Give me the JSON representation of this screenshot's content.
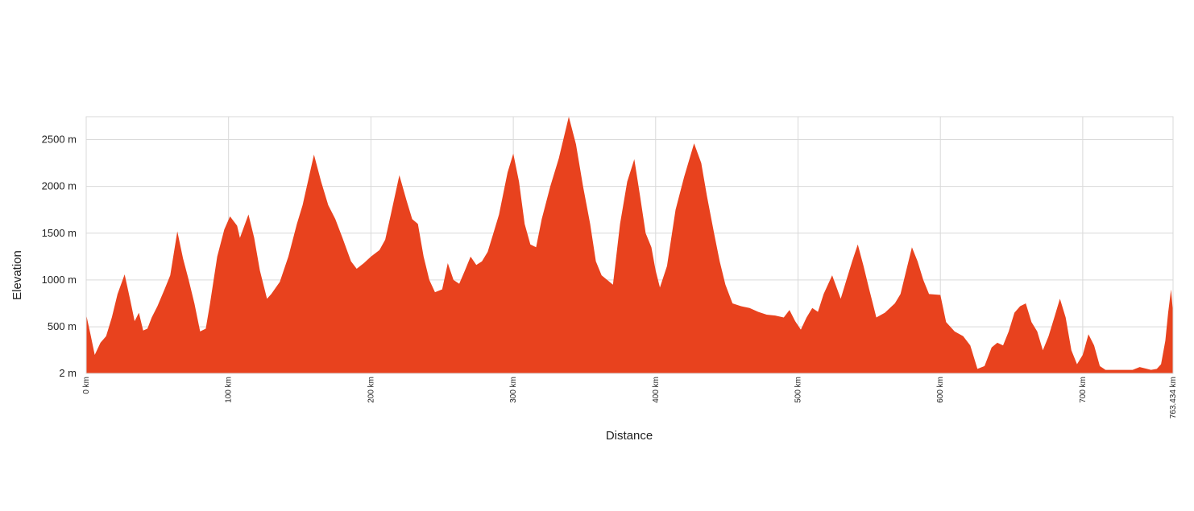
{
  "chart_data": {
    "type": "area",
    "title": "",
    "xlabel": "Distance",
    "ylabel": "Elevation",
    "xlim": [
      0,
      763.434
    ],
    "ylim": [
      2,
      2745
    ],
    "grid": true,
    "color": "#e8421e",
    "x_ticks": [
      {
        "value": 0,
        "label": "0 km"
      },
      {
        "value": 100,
        "label": "100 km"
      },
      {
        "value": 200,
        "label": "200 km"
      },
      {
        "value": 300,
        "label": "300 km"
      },
      {
        "value": 400,
        "label": "400 km"
      },
      {
        "value": 500,
        "label": "500 km"
      },
      {
        "value": 600,
        "label": "600 km"
      },
      {
        "value": 700,
        "label": "700 km"
      },
      {
        "value": 763.434,
        "label": "763.434 km"
      }
    ],
    "y_ticks": [
      {
        "value": 2,
        "label": "2 m"
      },
      {
        "value": 500,
        "label": "500 m"
      },
      {
        "value": 1000,
        "label": "1000 m"
      },
      {
        "value": 1500,
        "label": "1500 m"
      },
      {
        "value": 2000,
        "label": "2000 m"
      },
      {
        "value": 2500,
        "label": "2500 m"
      }
    ],
    "series": [
      {
        "points": [
          [
            0,
            630
          ],
          [
            3,
            420
          ],
          [
            6,
            200
          ],
          [
            10,
            330
          ],
          [
            14,
            400
          ],
          [
            18,
            600
          ],
          [
            22,
            850
          ],
          [
            27,
            1060
          ],
          [
            31,
            780
          ],
          [
            34,
            560
          ],
          [
            37,
            650
          ],
          [
            40,
            460
          ],
          [
            43,
            480
          ],
          [
            46,
            600
          ],
          [
            50,
            720
          ],
          [
            55,
            900
          ],
          [
            59,
            1050
          ],
          [
            64,
            1520
          ],
          [
            68,
            1230
          ],
          [
            72,
            1000
          ],
          [
            76,
            750
          ],
          [
            80,
            450
          ],
          [
            84,
            480
          ],
          [
            87,
            750
          ],
          [
            92,
            1250
          ],
          [
            97,
            1540
          ],
          [
            101,
            1680
          ],
          [
            106,
            1580
          ],
          [
            108,
            1450
          ],
          [
            114,
            1700
          ],
          [
            118,
            1450
          ],
          [
            122,
            1100
          ],
          [
            127,
            800
          ],
          [
            130,
            850
          ],
          [
            136,
            980
          ],
          [
            142,
            1250
          ],
          [
            148,
            1600
          ],
          [
            152,
            1800
          ],
          [
            160,
            2340
          ],
          [
            165,
            2050
          ],
          [
            170,
            1800
          ],
          [
            175,
            1650
          ],
          [
            180,
            1450
          ],
          [
            186,
            1200
          ],
          [
            190,
            1120
          ],
          [
            195,
            1180
          ],
          [
            200,
            1250
          ],
          [
            206,
            1320
          ],
          [
            210,
            1430
          ],
          [
            214,
            1700
          ],
          [
            220,
            2120
          ],
          [
            225,
            1850
          ],
          [
            229,
            1650
          ],
          [
            233,
            1600
          ],
          [
            237,
            1250
          ],
          [
            241,
            1000
          ],
          [
            245,
            870
          ],
          [
            250,
            900
          ],
          [
            254,
            1180
          ],
          [
            258,
            1000
          ],
          [
            262,
            960
          ],
          [
            266,
            1100
          ],
          [
            270,
            1250
          ],
          [
            274,
            1160
          ],
          [
            278,
            1200
          ],
          [
            282,
            1300
          ],
          [
            286,
            1500
          ],
          [
            290,
            1700
          ],
          [
            296,
            2150
          ],
          [
            300,
            2350
          ],
          [
            304,
            2050
          ],
          [
            308,
            1600
          ],
          [
            312,
            1380
          ],
          [
            316,
            1350
          ],
          [
            320,
            1650
          ],
          [
            326,
            2000
          ],
          [
            332,
            2300
          ],
          [
            339,
            2745
          ],
          [
            344,
            2450
          ],
          [
            349,
            2000
          ],
          [
            354,
            1600
          ],
          [
            358,
            1200
          ],
          [
            362,
            1050
          ],
          [
            370,
            950
          ],
          [
            375,
            1600
          ],
          [
            380,
            2050
          ],
          [
            385,
            2290
          ],
          [
            389,
            1900
          ],
          [
            393,
            1500
          ],
          [
            397,
            1350
          ],
          [
            400,
            1100
          ],
          [
            403,
            920
          ],
          [
            408,
            1150
          ],
          [
            414,
            1750
          ],
          [
            420,
            2100
          ],
          [
            427,
            2460
          ],
          [
            432,
            2250
          ],
          [
            436,
            1900
          ],
          [
            441,
            1500
          ],
          [
            445,
            1200
          ],
          [
            449,
            950
          ],
          [
            454,
            750
          ],
          [
            460,
            720
          ],
          [
            466,
            700
          ],
          [
            472,
            660
          ],
          [
            478,
            630
          ],
          [
            484,
            620
          ],
          [
            490,
            600
          ],
          [
            494,
            680
          ],
          [
            498,
            560
          ],
          [
            502,
            470
          ],
          [
            506,
            600
          ],
          [
            510,
            700
          ],
          [
            514,
            660
          ],
          [
            518,
            850
          ],
          [
            524,
            1050
          ],
          [
            530,
            800
          ],
          [
            534,
            1000
          ],
          [
            538,
            1200
          ],
          [
            542,
            1380
          ],
          [
            546,
            1150
          ],
          [
            550,
            900
          ],
          [
            555,
            600
          ],
          [
            561,
            650
          ],
          [
            568,
            750
          ],
          [
            572,
            850
          ],
          [
            576,
            1100
          ],
          [
            580,
            1350
          ],
          [
            584,
            1200
          ],
          [
            588,
            1000
          ],
          [
            592,
            850
          ],
          [
            600,
            840
          ],
          [
            604,
            550
          ],
          [
            610,
            450
          ],
          [
            616,
            400
          ],
          [
            621,
            300
          ],
          [
            626,
            50
          ],
          [
            631,
            80
          ],
          [
            636,
            280
          ],
          [
            640,
            330
          ],
          [
            644,
            300
          ],
          [
            648,
            450
          ],
          [
            652,
            650
          ],
          [
            656,
            720
          ],
          [
            660,
            750
          ],
          [
            664,
            550
          ],
          [
            668,
            450
          ],
          [
            672,
            250
          ],
          [
            676,
            400
          ],
          [
            680,
            600
          ],
          [
            684,
            800
          ],
          [
            688,
            600
          ],
          [
            692,
            250
          ],
          [
            696,
            100
          ],
          [
            700,
            200
          ],
          [
            704,
            420
          ],
          [
            708,
            300
          ],
          [
            712,
            80
          ],
          [
            716,
            40
          ],
          [
            725,
            40
          ],
          [
            735,
            40
          ],
          [
            740,
            70
          ],
          [
            748,
            40
          ],
          [
            752,
            50
          ],
          [
            755,
            100
          ],
          [
            758,
            350
          ],
          [
            760,
            650
          ],
          [
            762,
            900
          ],
          [
            763.434,
            650
          ]
        ]
      }
    ]
  }
}
